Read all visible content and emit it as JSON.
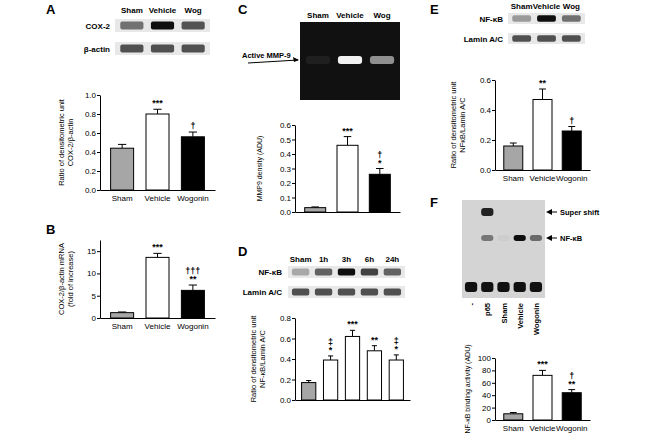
{
  "chart_data": [
    {
      "panel": "A",
      "type": "bar",
      "categories": [
        "Sham",
        "Vehicle",
        "Wogonin"
      ],
      "values": [
        0.44,
        0.8,
        0.56
      ],
      "errors": [
        0.04,
        0.05,
        0.05
      ],
      "colors": [
        "#a6a6a6",
        "#ffffff",
        "#000000"
      ],
      "ylabel": [
        "Ratio of densitometric unit",
        "COX-2/β-actin"
      ],
      "ylim": [
        0,
        1
      ],
      "yticks": [
        {
          "value": 0,
          "label": "0.0"
        },
        0.2,
        0.4,
        0.6,
        0.8,
        {
          "value": 1,
          "label": "1.0"
        }
      ],
      "significance": [
        null,
        [
          "***"
        ],
        [
          "†"
        ]
      ],
      "blot": {
        "lanes": [
          "Sham",
          "Vehicle",
          "Wog"
        ],
        "rows": [
          "COX-2",
          "β-actin"
        ]
      }
    },
    {
      "panel": "B",
      "type": "bar",
      "categories": [
        "Sham",
        "Vehicle",
        "Wogonin"
      ],
      "values": [
        1.2,
        13.6,
        6.2
      ],
      "errors": [
        0.15,
        0.9,
        1.2
      ],
      "colors": [
        "#a6a6a6",
        "#ffffff",
        "#000000"
      ],
      "ylabel": [
        "COX-2/β-actin mRNA",
        "(fold of increase)"
      ],
      "ylim": [
        0,
        17.5
      ],
      "yticks": [
        0,
        5,
        10,
        15
      ],
      "significance": [
        null,
        [
          "***"
        ],
        [
          "†††",
          "**"
        ]
      ]
    },
    {
      "panel": "C",
      "type": "bar",
      "categories": [
        "Sham",
        "Vehicle",
        "Wog"
      ],
      "values": [
        0.03,
        0.46,
        0.26
      ],
      "errors": [
        0.005,
        0.06,
        0.04
      ],
      "colors": [
        "#a6a6a6",
        "#ffffff",
        "#000000"
      ],
      "ylabel": [
        "MMP9 density (ADU)"
      ],
      "ylim": [
        0,
        0.6
      ],
      "yticks": [
        {
          "value": 0,
          "label": "0.0"
        },
        0.1,
        0.2,
        0.3,
        0.4,
        0.5,
        0.6
      ],
      "tick_labels": "y",
      "significance": [
        null,
        [
          "***"
        ],
        [
          "†",
          "*"
        ]
      ],
      "gel": {
        "label": "Active MMP-9"
      }
    },
    {
      "panel": "D",
      "type": "bar",
      "categories": [
        "Sham",
        "1h",
        "3h",
        "6h",
        "24h"
      ],
      "values": [
        0.17,
        0.39,
        0.62,
        0.48,
        0.39
      ],
      "errors": [
        0.02,
        0.04,
        0.06,
        0.05,
        0.05
      ],
      "colors": [
        "#a6a6a6",
        "#ffffff",
        "#ffffff",
        "#ffffff",
        "#ffffff"
      ],
      "ylabel": [
        "Ratio of densitometric unit",
        "NF-κB/Lamin A/C"
      ],
      "ylim": [
        0,
        0.8
      ],
      "yticks": [
        {
          "value": 0,
          "label": "0.0"
        },
        0.2,
        0.4,
        0.6,
        0.8
      ],
      "tick_labels": "y",
      "significance": [
        null,
        [
          "‡",
          "*"
        ],
        [
          "***"
        ],
        [
          "**"
        ],
        [
          "‡",
          "*"
        ]
      ],
      "blot": {
        "rows": [
          "NF-κB",
          "Lamin A/C"
        ]
      }
    },
    {
      "panel": "E",
      "type": "bar",
      "categories": [
        "Sham",
        "Vehicle",
        "Wogonin"
      ],
      "values": [
        0.16,
        0.47,
        0.26
      ],
      "errors": [
        0.02,
        0.07,
        0.03
      ],
      "colors": [
        "#a6a6a6",
        "#ffffff",
        "#000000"
      ],
      "ylabel": [
        "Ratio of densitometric unit",
        "NFκB/Lamin A/C"
      ],
      "ylim": [
        0,
        0.6
      ],
      "yticks": [
        {
          "value": 0,
          "label": "0.0"
        },
        0.2,
        0.4,
        0.6
      ],
      "significance": [
        null,
        [
          "**"
        ],
        [
          "†"
        ]
      ],
      "blot": {
        "lanes": [
          "Sham",
          "Vehicle",
          "Wog"
        ],
        "rows": [
          "NF-κB",
          "Lamin A/C"
        ]
      }
    },
    {
      "panel": "F",
      "type": "bar",
      "categories": [
        "Sham",
        "Vehicle",
        "Wogonin"
      ],
      "values": [
        10,
        72,
        44
      ],
      "errors": [
        2,
        8,
        5
      ],
      "colors": [
        "#a6a6a6",
        "#ffffff",
        "#000000"
      ],
      "ylabel": [
        "NF-κB binding activity (ADU)"
      ],
      "ylim": [
        0,
        100
      ],
      "yticks": [
        0,
        20,
        40,
        60,
        80,
        100
      ],
      "significance": [
        null,
        [
          "***"
        ],
        [
          "†",
          "**"
        ]
      ],
      "emsa": {
        "lanes": [
          "-",
          "p65",
          "Sham",
          "Vehicle",
          "Wogonin"
        ],
        "bands": [
          "Super shift",
          "NF-κB"
        ]
      }
    }
  ]
}
